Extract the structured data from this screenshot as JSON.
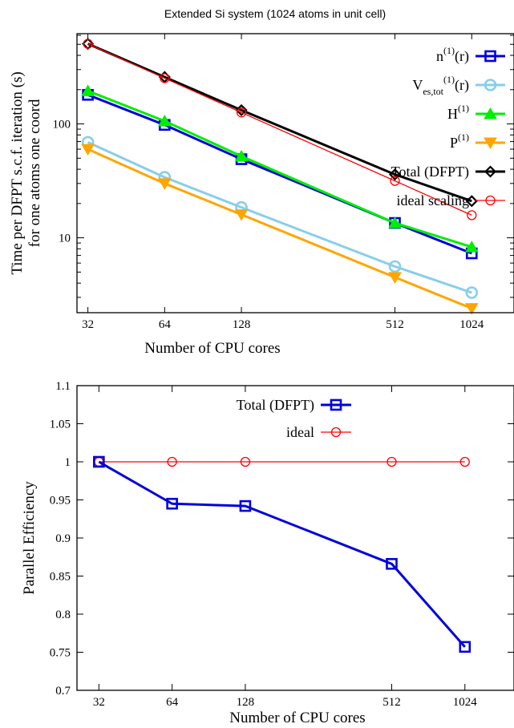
{
  "chart_data": [
    {
      "type": "line",
      "title": "Extended Si system (1024 atoms in unit cell)",
      "xlabel": "Number of CPU cores",
      "ylabel_line1": "Time per DFPT s.c.f. iteration (s)",
      "ylabel_line2": "for one atoms one coord",
      "xscale": "log",
      "yscale": "log",
      "xlim": [
        29,
        1500
      ],
      "ylim": [
        2.2,
        620
      ],
      "xticks": [
        32,
        64,
        128,
        512,
        1024
      ],
      "xtick_labels": [
        "32",
        "64",
        "128",
        "512",
        "1024"
      ],
      "yticks": [
        10,
        100
      ],
      "ytick_labels": [
        "10",
        "100"
      ],
      "legend_position": "top-right",
      "series": [
        {
          "name": "n(1)(r)",
          "name_main": "n",
          "name_sup": "(1)",
          "name_tail": "(r)",
          "color": "#0000dd",
          "marker": "square",
          "x": [
            32,
            64,
            128,
            512,
            1024
          ],
          "y": [
            180,
            98,
            49,
            13.5,
            7.3
          ]
        },
        {
          "name": "Ves,tot(1)(r)",
          "name_main": "V",
          "name_sub": "es,tot",
          "name_sup": "(1)",
          "name_tail": "(r)",
          "color": "#87ceeb",
          "marker": "circle",
          "x": [
            32,
            64,
            128,
            512,
            1024
          ],
          "y": [
            69,
            34,
            18.5,
            5.6,
            3.3
          ]
        },
        {
          "name": "H(1)",
          "name_main": "H",
          "name_sup": "(1)",
          "name_tail": "",
          "color": "#00ee00",
          "marker": "triangle-up",
          "x": [
            32,
            64,
            128,
            512,
            1024
          ],
          "y": [
            195,
            106,
            52,
            13.5,
            8.3
          ]
        },
        {
          "name": "P(1)",
          "name_main": "P",
          "name_sup": "(1)",
          "name_tail": "",
          "color": "#ffa500",
          "marker": "triangle-down",
          "x": [
            32,
            64,
            128,
            512,
            1024
          ],
          "y": [
            60,
            30,
            16,
            4.5,
            2.4
          ]
        },
        {
          "name": "Total (DFPT)",
          "name_main": "Total (DFPT)",
          "name_sup": "",
          "name_tail": "",
          "color": "#000000",
          "marker": "diamond",
          "x": [
            32,
            64,
            128,
            512,
            1024
          ],
          "y": [
            505,
            258,
            132,
            36,
            21
          ]
        },
        {
          "name": "ideal scaling",
          "name_main": "ideal scaling",
          "name_sup": "",
          "name_tail": "",
          "color": "#ff0000",
          "marker": "circle-small",
          "x": [
            32,
            64,
            128,
            512,
            1024
          ],
          "y": [
            505,
            252,
            126,
            31.6,
            15.8
          ]
        }
      ]
    },
    {
      "type": "line",
      "xlabel": "Number of CPU cores",
      "ylabel": "Parallel Efficiency",
      "xscale": "log",
      "yscale": "linear",
      "xlim": [
        26,
        1630
      ],
      "ylim": [
        0.7,
        1.1
      ],
      "xticks": [
        32,
        64,
        128,
        512,
        1024
      ],
      "xtick_labels": [
        "32",
        "64",
        "128",
        "512",
        "1024"
      ],
      "yticks": [
        0.7,
        0.75,
        0.8,
        0.85,
        0.9,
        0.95,
        1.0,
        1.05,
        1.1
      ],
      "ytick_labels": [
        "0.7",
        "0.75",
        "0.8",
        "0.85",
        "0.9",
        "0.95",
        "1",
        "1.05",
        "1.1"
      ],
      "legend_position": "top-center",
      "series": [
        {
          "name": "Total (DFPT)",
          "color": "#0000dd",
          "marker": "square",
          "x": [
            32,
            64,
            128,
            512,
            1024
          ],
          "y": [
            1.0,
            0.945,
            0.942,
            0.866,
            0.757
          ]
        },
        {
          "name": "ideal",
          "color": "#ff0000",
          "marker": "circle-small",
          "x": [
            32,
            64,
            128,
            512,
            1024
          ],
          "y": [
            1.0,
            1.0,
            1.0,
            1.0,
            1.0
          ]
        }
      ]
    }
  ]
}
